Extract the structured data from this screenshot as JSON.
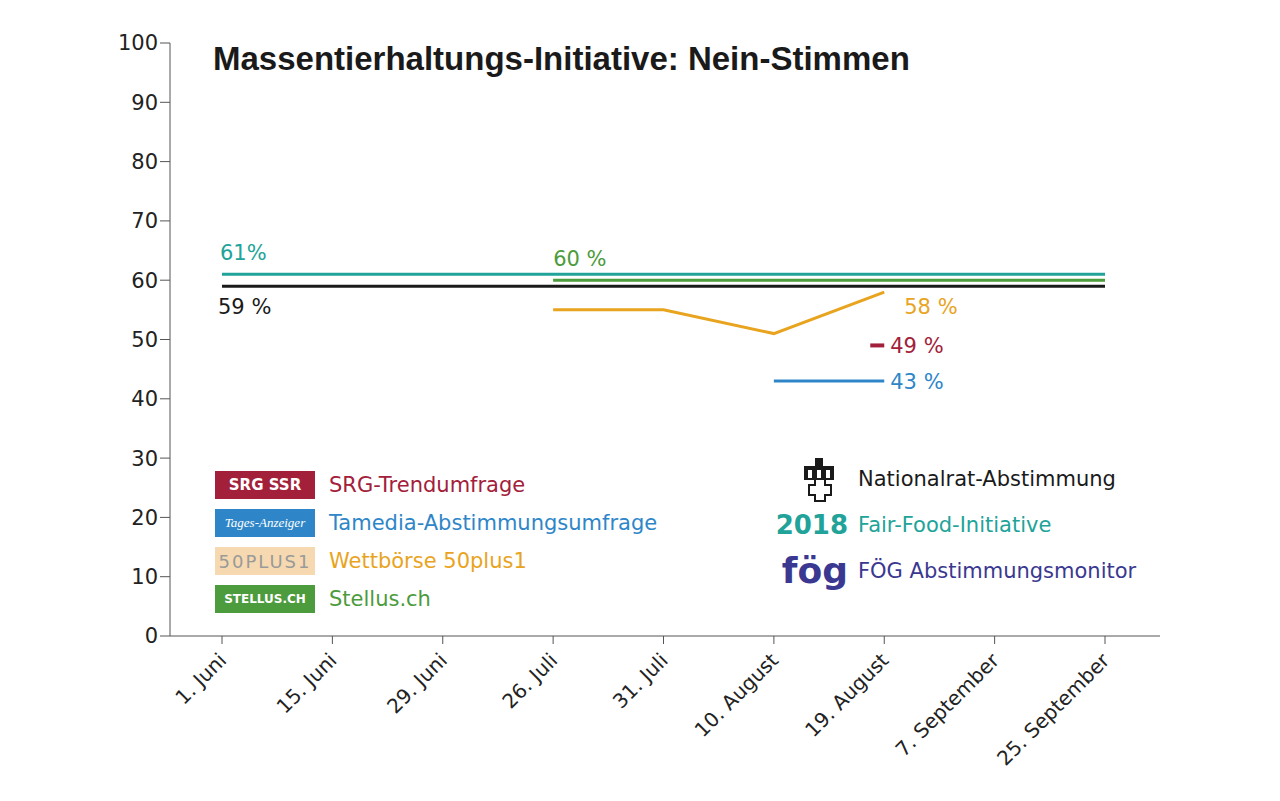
{
  "chart_data": {
    "type": "line",
    "title": "Massentierhaltungs-Initiative: Nein-Stimmen",
    "x": [
      "1. Juni",
      "15. Juni",
      "29. Juni",
      "26. Juli",
      "31. Juli",
      "10. August",
      "19. August",
      "7. September",
      "25. September"
    ],
    "ylim": [
      0,
      100
    ],
    "yticks": [
      0,
      10,
      20,
      30,
      40,
      50,
      60,
      70,
      80,
      90,
      100
    ],
    "grid": false,
    "data_labels": true,
    "legend": "bottom-left",
    "series": [
      {
        "name": "SRG-Trendumfrage",
        "badge": "SRG SSR",
        "color": "#a3203a",
        "marker": "dash",
        "values": [
          null,
          null,
          null,
          null,
          null,
          null,
          49,
          null,
          null
        ],
        "value_labels": [
          null,
          null,
          null,
          null,
          null,
          null,
          "49 %",
          null,
          null
        ]
      },
      {
        "name": "Tamedia-Abstimmungsumfrage",
        "badge": "Tages-Anzeiger",
        "color": "#2e86c8",
        "values": [
          null,
          null,
          null,
          null,
          null,
          43,
          43,
          null,
          null
        ],
        "value_labels": [
          null,
          null,
          null,
          null,
          null,
          null,
          "43 %",
          null,
          null
        ]
      },
      {
        "name": "Wettbörse 50plus1",
        "badge": "50PLUS1",
        "color": "#e8a41e",
        "values": [
          null,
          null,
          null,
          55,
          55,
          51,
          58,
          null,
          null
        ],
        "value_labels": [
          null,
          null,
          null,
          null,
          null,
          null,
          "58 %",
          null,
          null
        ]
      },
      {
        "name": "Stellus.ch",
        "badge": "STELLUS.CH",
        "color": "#4c9b3c",
        "values": [
          null,
          null,
          null,
          60,
          60,
          60,
          60,
          60,
          60
        ],
        "value_labels": [
          null,
          null,
          null,
          "60 %",
          null,
          null,
          null,
          null,
          null
        ]
      },
      {
        "name": "Nationalrat-Abstimmung",
        "color": "#1a1a1a",
        "values": [
          59,
          59,
          59,
          59,
          59,
          59,
          59,
          59,
          59
        ],
        "value_labels": [
          "59 %",
          null,
          null,
          null,
          null,
          null,
          null,
          null,
          null
        ]
      },
      {
        "name": "Fair-Food-Initiative",
        "badge": "2018",
        "color": "#21a39a",
        "values": [
          61,
          61,
          61,
          61,
          61,
          61,
          61,
          61,
          61
        ],
        "value_labels": [
          "61%",
          null,
          null,
          null,
          null,
          null,
          null,
          null,
          null
        ]
      },
      {
        "name": "FÖG Abstimmungsmonitor",
        "badge": "fög",
        "color": "#3a3890",
        "values": [
          null,
          null,
          null,
          null,
          null,
          null,
          null,
          null,
          null
        ],
        "value_labels": [
          null,
          null,
          null,
          null,
          null,
          null,
          null,
          null,
          null
        ]
      }
    ]
  }
}
